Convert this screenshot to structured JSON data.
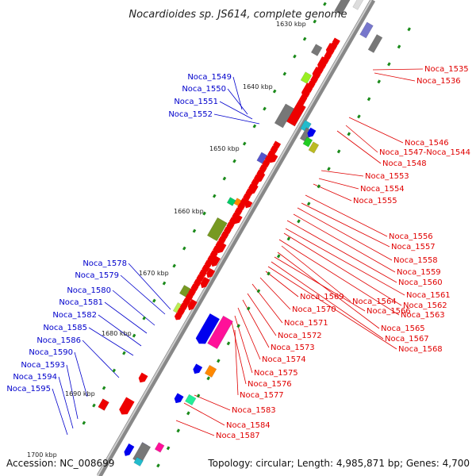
{
  "title": "Nocardioides sp. JS614, complete genome",
  "footer": {
    "accession": "Accession: NC_008699",
    "topology": "Topology: circular; Length: 4,985,871 bp; Genes: 4,700"
  },
  "colors": {
    "left_label": "#0000cc",
    "right_label": "#e00000",
    "backbone": "#888888",
    "tick_dot": "#1a8a1a",
    "rna_gray": "#777777"
  },
  "kbp_marks": [
    "1630 kbp",
    "1640 kbp",
    "1650 kbp",
    "1660 kbp",
    "1670 kbp",
    "1680 kbp",
    "1690 kbp",
    "1700 kbp"
  ],
  "left_labels": [
    "Noca_1549",
    "Noca_1550",
    "Noca_1551",
    "Noca_1552",
    "Noca_1578",
    "Noca_1579",
    "Noca_1580",
    "Noca_1581",
    "Noca_1582",
    "Noca_1585",
    "Noca_1586",
    "Noca_1590",
    "Noca_1593",
    "Noca_1594",
    "Noca_1595"
  ],
  "right_labels": [
    "Noca_1535",
    "Noca_1536",
    "Noca_1546",
    "Noca_1547-Noca_1544",
    "Noca_1548",
    "Noca_1553",
    "Noca_1554",
    "Noca_1555",
    "Noca_1556",
    "Noca_1557",
    "Noca_1558",
    "Noca_1559",
    "Noca_1560",
    "Noca_1561",
    "Noca_1562",
    "Noca_1563",
    "Noca_1564",
    "Noca_1565",
    "Noca_1566",
    "Noca_1567",
    "Noca_1568",
    "Noca_1569",
    "Noca_1570",
    "Noca_1571",
    "Noca_1572",
    "Noca_1573",
    "Noca_1574",
    "Noca_1575",
    "Noca_1576",
    "Noca_1577",
    "Noca_1583",
    "Noca_1584",
    "Noca_1587"
  ]
}
